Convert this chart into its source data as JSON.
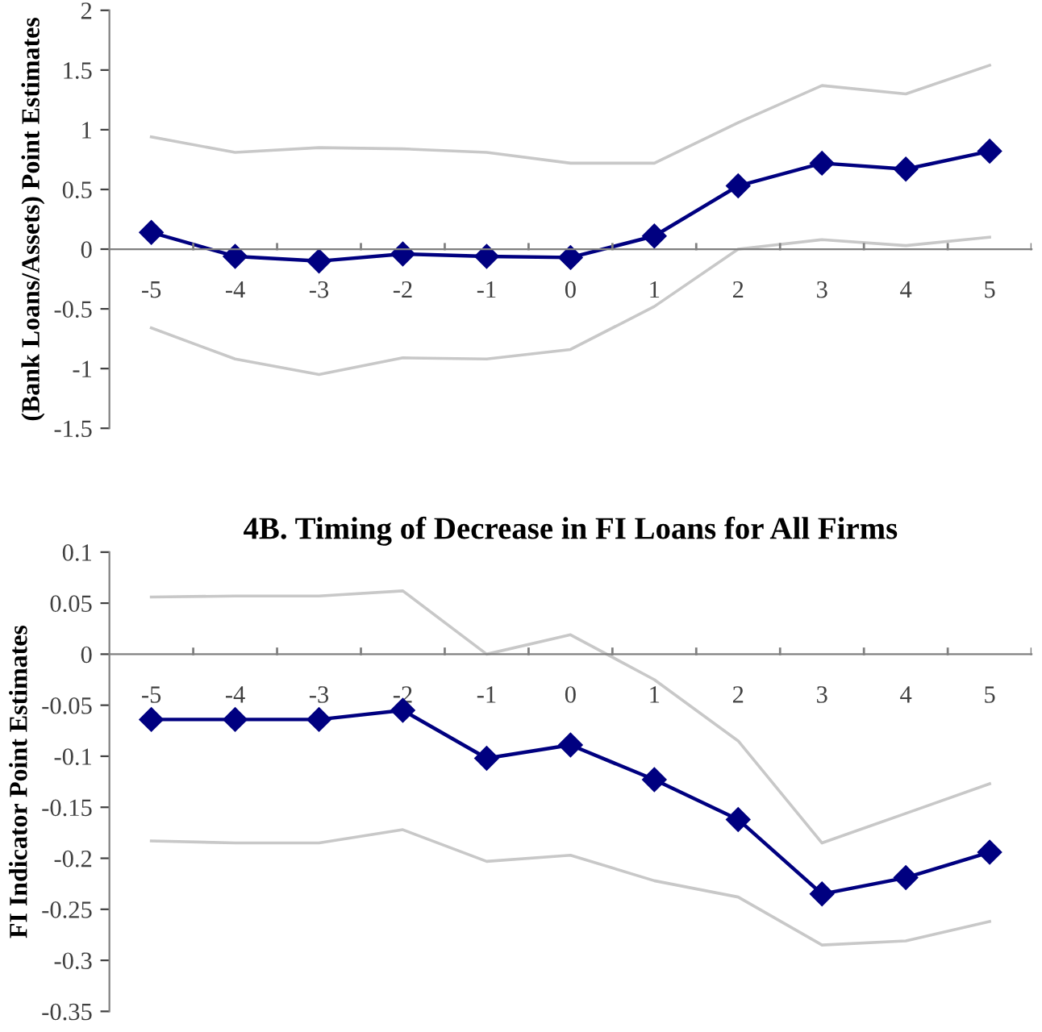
{
  "chart_data": [
    {
      "type": "line",
      "ylabel": "(Bank Loans/Assets) Point Estimates",
      "categories": [
        "-5",
        "-4",
        "-3",
        "-2",
        "-1",
        "0",
        "1",
        "2",
        "3",
        "4",
        "5"
      ],
      "ylim": [
        -1.5,
        2
      ],
      "yticks": [
        -1.5,
        -1,
        -0.5,
        0,
        0.5,
        1,
        1.5,
        2
      ],
      "grid": false,
      "legend": false,
      "series": [
        {
          "color": "#c8c8c8",
          "marker": "none",
          "values": [
            0.94,
            0.81,
            0.85,
            0.84,
            0.81,
            0.72,
            0.72,
            1.06,
            1.37,
            1.3,
            1.54
          ]
        },
        {
          "color": "#c8c8c8",
          "marker": "none",
          "values": [
            -0.66,
            -0.92,
            -1.05,
            -0.91,
            -0.92,
            -0.84,
            -0.48,
            0.0,
            0.08,
            0.03,
            0.1
          ]
        },
        {
          "color": "#000080",
          "marker": "diamond",
          "values": [
            0.14,
            -0.06,
            -0.1,
            -0.04,
            -0.06,
            -0.07,
            0.11,
            0.53,
            0.72,
            0.67,
            0.82
          ]
        }
      ]
    },
    {
      "type": "line",
      "title": "4B. Timing of Decrease in FI Loans for All Firms",
      "ylabel": "FI Indicator Point Estimates",
      "categories": [
        "-5",
        "-4",
        "-3",
        "-2",
        "-1",
        "0",
        "1",
        "2",
        "3",
        "4",
        "5"
      ],
      "ylim": [
        -0.35,
        0.1
      ],
      "yticks": [
        -0.35,
        -0.3,
        -0.25,
        -0.2,
        -0.15,
        -0.1,
        -0.05,
        0,
        0.05,
        0.1
      ],
      "grid": false,
      "legend": false,
      "series": [
        {
          "color": "#c8c8c8",
          "marker": "none",
          "values": [
            0.056,
            0.057,
            0.057,
            0.062,
            0.0,
            0.019,
            -0.025,
            -0.085,
            -0.185,
            -0.156,
            -0.127
          ]
        },
        {
          "color": "#c8c8c8",
          "marker": "none",
          "values": [
            -0.183,
            -0.185,
            -0.185,
            -0.172,
            -0.203,
            -0.197,
            -0.222,
            -0.238,
            -0.285,
            -0.281,
            -0.262
          ]
        },
        {
          "color": "#000080",
          "marker": "diamond",
          "values": [
            -0.064,
            -0.064,
            -0.064,
            -0.055,
            -0.102,
            -0.089,
            -0.123,
            -0.162,
            -0.235,
            -0.219,
            -0.194
          ]
        }
      ]
    }
  ]
}
